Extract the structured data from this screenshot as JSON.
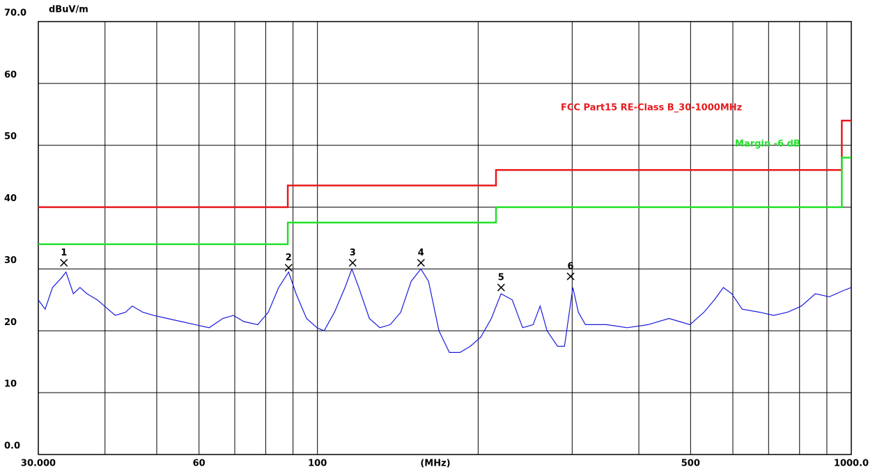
{
  "chart_data": {
    "type": "line",
    "y_unit": "dBuV/m",
    "x_label": "(MHz)",
    "log_x": true,
    "grid": true,
    "xlim": [
      30,
      1000
    ],
    "ylim": [
      0,
      70
    ],
    "xticks": [
      {
        "value": 30,
        "label": "30.000"
      },
      60,
      100,
      500,
      {
        "value": 1000,
        "label": "1000.0"
      }
    ],
    "xgrid": [
      40,
      50,
      60,
      70,
      80,
      90,
      100,
      200,
      300,
      400,
      500,
      600,
      700,
      800,
      900
    ],
    "yticks": [
      {
        "value": 0,
        "label": "0.0"
      },
      10,
      20,
      30,
      40,
      50,
      60,
      {
        "value": 70,
        "label": "70.0"
      }
    ],
    "series": [
      {
        "color": "#1a1adc",
        "x": [
          30.0,
          30.9,
          31.9,
          33.1,
          33.8,
          34.9,
          35.9,
          37.0,
          38.7,
          39.9,
          41.8,
          43.7,
          45.0,
          47.1,
          49.3,
          52.3,
          55.6,
          59.0,
          62.7,
          66.5,
          69.6,
          72.8,
          77.3,
          80.9,
          84.6,
          88.3,
          91.2,
          95.4,
          99.8,
          102.9,
          107.6,
          112.6,
          116.0,
          119.5,
          125.1,
          130.9,
          136.9,
          143.2,
          149.8,
          156.2,
          161.5,
          168.9,
          176.7,
          184.9,
          193.4,
          202.3,
          211.7,
          220.8,
          231.7,
          242.3,
          253.5,
          261.3,
          269.2,
          281.7,
          290.2,
          300.9,
          308.1,
          317.6,
          347.6,
          380.5,
          416.4,
          455.6,
          476.6,
          498.6,
          529.6,
          554.0,
          576.0,
          597.2,
          624.6,
          673.5,
          715.3,
          759.6,
          806.5,
          856.4,
          909.5,
          965.9,
          1000
        ],
        "values": [
          25,
          23.5,
          27,
          28.5,
          29.5,
          26,
          27,
          26,
          25,
          24,
          22.5,
          23,
          24,
          23,
          22.5,
          22,
          21.5,
          21,
          20.5,
          22,
          22.5,
          21.5,
          21,
          23,
          27,
          29.5,
          26,
          22,
          20.5,
          20,
          23,
          27,
          30,
          27,
          22,
          20.5,
          21,
          23,
          28,
          30,
          28,
          20,
          16.5,
          16.5,
          17.5,
          19,
          22,
          26,
          25,
          20.5,
          21,
          24,
          20,
          17.5,
          17.5,
          27,
          23,
          21,
          21,
          20.5,
          21,
          22,
          21.5,
          21,
          23,
          25,
          27,
          26,
          23.5,
          23,
          22.5,
          23,
          24,
          26,
          25.5,
          26.5,
          27
        ]
      },
      {
        "name": "FCC Part15 RE-Class B_30-1000MHz",
        "color": "#e8191c",
        "x": [
          30,
          88,
          88,
          216,
          216,
          960,
          960,
          1000
        ],
        "values": [
          40,
          40,
          43.5,
          43.5,
          46,
          46,
          54,
          54
        ]
      },
      {
        "name": "Margin -6 dB",
        "color": "#22e02a",
        "x": [
          30,
          88,
          88,
          216,
          216,
          960,
          960,
          1000
        ],
        "values": [
          34,
          34,
          37.5,
          37.5,
          40,
          40,
          48,
          48
        ]
      }
    ],
    "markers": [
      {
        "label": "1",
        "x": 33.5,
        "y": 31.0
      },
      {
        "label": "2",
        "x": 88.3,
        "y": 30.2
      },
      {
        "label": "3",
        "x": 116.4,
        "y": 31.0
      },
      {
        "label": "4",
        "x": 156.3,
        "y": 31.0
      },
      {
        "label": "5",
        "x": 220.8,
        "y": 27.0
      },
      {
        "label": "6",
        "x": 298.0,
        "y": 28.8
      }
    ]
  }
}
